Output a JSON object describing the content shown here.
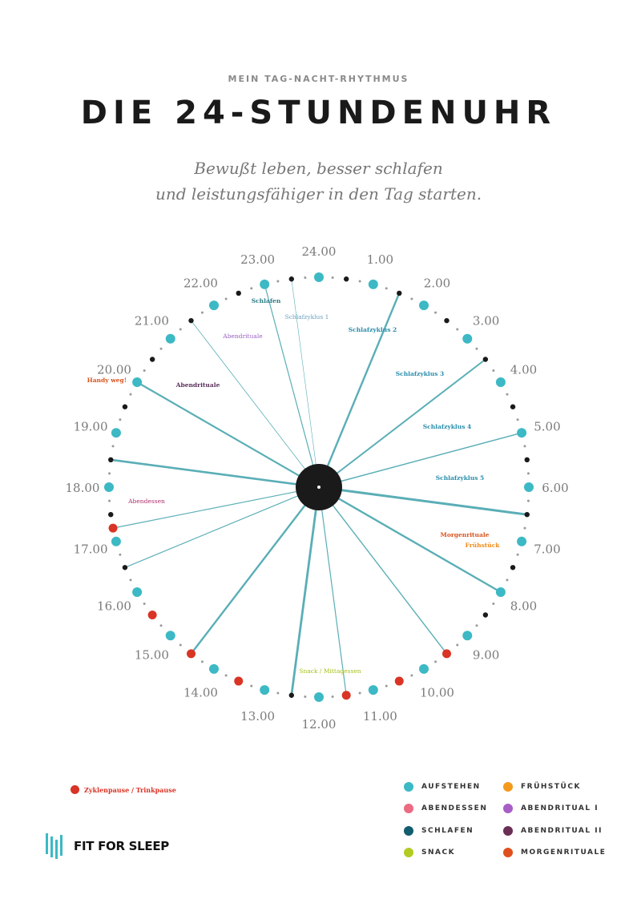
{
  "header": {
    "kicker": "MEIN TAG-NACHT-RHYTHMUS",
    "title": "DIE 24-STUNDENUHR",
    "subtitle_line1": "Bewußt leben, besser schlafen",
    "subtitle_line2": "und leistungsfähiger in den Tag starten."
  },
  "colors": {
    "teal": "#3cb9c4",
    "ray": "#5aaeb6",
    "black": "#1a1a1a",
    "grey_dot": "#9a9a9a",
    "pause_red": "#d93425"
  },
  "hours": [
    "24.00",
    "1.00",
    "2.00",
    "3.00",
    "4.00",
    "5.00",
    "6.00",
    "7.00",
    "8.00",
    "9.00",
    "10.00",
    "11.00",
    "12.00",
    "13.00",
    "14.00",
    "15.00",
    "16.00",
    "17.00",
    "18.00",
    "19.00",
    "20.00",
    "21.00",
    "22.00",
    "23.00"
  ],
  "pauses": [
    9.5,
    10.5,
    11.5,
    13.5,
    14.5,
    15.5,
    17.25
  ],
  "rays": [
    {
      "hour": 1.5,
      "weight": 2.4
    },
    {
      "hour": 3.5,
      "weight": 2.0
    },
    {
      "hour": 5.0,
      "weight": 1.5
    },
    {
      "hour": 6.5,
      "weight": 3.0
    },
    {
      "hour": 8.0,
      "weight": 2.4
    },
    {
      "hour": 9.5,
      "weight": 1.4
    },
    {
      "hour": 11.5,
      "weight": 1.2
    },
    {
      "hour": 12.5,
      "weight": 2.8
    },
    {
      "hour": 14.5,
      "weight": 2.4
    },
    {
      "hour": 16.5,
      "weight": 1.2
    },
    {
      "hour": 17.25,
      "weight": 1.2
    },
    {
      "hour": 18.5,
      "weight": 2.6
    },
    {
      "hour": 20.0,
      "weight": 2.2
    },
    {
      "hour": 21.5,
      "weight": 0.8
    },
    {
      "hour": 23.0,
      "weight": 1.2
    },
    {
      "hour": 23.5,
      "weight": 0.6
    }
  ],
  "annotations": [
    {
      "text": "Schlafen",
      "color": "#2a7c86",
      "bold": true
    },
    {
      "text": "Schlafzyklus 1",
      "color": "#6b9fc0",
      "bold": false
    },
    {
      "text": "Schlafzyklus 2",
      "color": "#2b8eab",
      "bold": true
    },
    {
      "text": "Schlafzyklus 3",
      "color": "#2b8eab",
      "bold": true
    },
    {
      "text": "Schlafzyklus 4",
      "color": "#2b8eab",
      "bold": true
    },
    {
      "text": "Schlafzyklus 5",
      "color": "#2b8eab",
      "bold": true
    },
    {
      "text": "Abendrituale",
      "color": "#9a62c4",
      "bold": false
    },
    {
      "text": "Abendrituale",
      "color": "#5a2f5a",
      "bold": true
    },
    {
      "text": "Handy weg!",
      "color": "#d9531e",
      "bold": true
    },
    {
      "text": "Abendessen",
      "color": "#b0306f",
      "bold": false
    },
    {
      "text": "Morgenrituale",
      "color": "#d9531e",
      "bold": true
    },
    {
      "text": "Frühstück",
      "color": "#ef8c1a",
      "bold": true
    },
    {
      "text": "Snack / Mittagessen",
      "color": "#a8c01a",
      "bold": false
    }
  ],
  "legend": [
    {
      "label": "AUFSTEHEN",
      "color": "#3cb9c4"
    },
    {
      "label": "FRÜHSTÜCK",
      "color": "#f39a1e"
    },
    {
      "label": "ABENDESSEN",
      "color": "#ec6a82"
    },
    {
      "label": "ABENDRITUAL I",
      "color": "#a85ec7"
    },
    {
      "label": "SCHLAFEN",
      "color": "#125d6e"
    },
    {
      "label": "ABENDRITUAL II",
      "color": "#6a2f54"
    },
    {
      "label": "SNACK",
      "color": "#b4cb22"
    },
    {
      "label": "MORGENRITUALE",
      "color": "#e0501f"
    }
  ],
  "pause_legend": {
    "label": "Zyklenpause / Trinkpause",
    "color": "#d93425"
  },
  "logo": {
    "text": "FIT FOR SLEEP",
    "icon": "sleep-bars-icon"
  }
}
